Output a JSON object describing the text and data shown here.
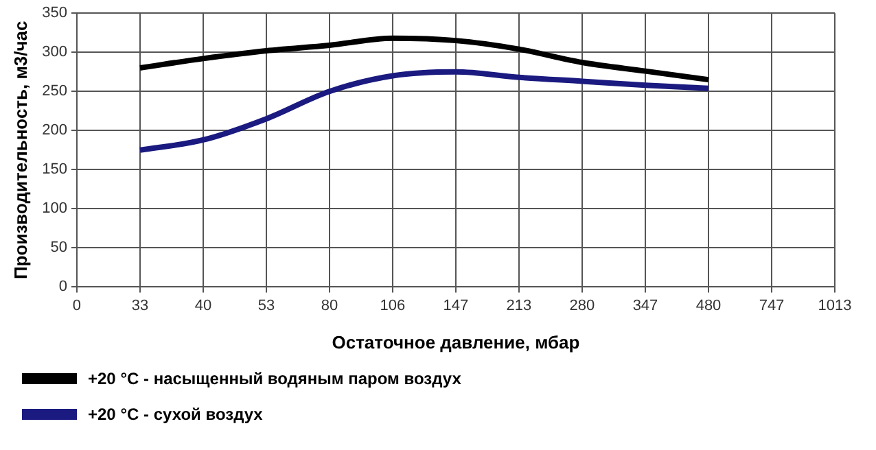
{
  "chart_data": {
    "type": "line",
    "xlabel": "Остаточное давление, мбар",
    "ylabel": "Производительность, м3/час",
    "categories": [
      "0",
      "33",
      "40",
      "53",
      "80",
      "106",
      "147",
      "213",
      "280",
      "347",
      "480",
      "747",
      "1013"
    ],
    "series": [
      {
        "name": "+20 °C - насыщенный водяным паром воздух",
        "color": "#000000",
        "values": [
          null,
          280,
          292,
          302,
          309,
          318,
          315,
          304,
          287,
          276,
          265,
          null,
          null
        ]
      },
      {
        "name": "+20 °C - сухой воздух",
        "color": "#1a1a80",
        "values": [
          null,
          175,
          188,
          215,
          250,
          270,
          275,
          268,
          263,
          258,
          254,
          null,
          null
        ]
      }
    ],
    "ylim": [
      0,
      350
    ],
    "yticks": [
      0,
      50,
      100,
      150,
      200,
      250,
      300,
      350
    ],
    "grid": true,
    "legend": "bottom",
    "marker": "none",
    "line_style": "solid"
  }
}
